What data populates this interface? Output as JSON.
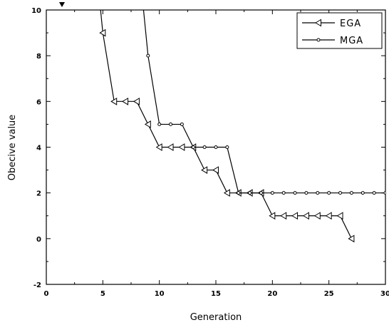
{
  "chart_data": {
    "type": "line",
    "title": "",
    "xlabel": "Generation",
    "ylabel": "Obecive value",
    "xlim": [
      0,
      30
    ],
    "ylim": [
      -2,
      10
    ],
    "x_ticks": [
      "0",
      "5",
      "10",
      "15",
      "20",
      "25",
      "30"
    ],
    "y_ticks": [
      "-2",
      "0",
      "2",
      "4",
      "6",
      "8",
      "10"
    ],
    "legend_position": "top-right",
    "grid": false,
    "series": [
      {
        "name": "EGA",
        "marker": "left-triangle",
        "color": "#000000",
        "x": [
          4.8,
          5,
          6,
          7,
          8,
          9,
          10,
          11,
          12,
          13,
          14,
          15,
          16,
          17,
          18,
          19,
          20,
          21,
          22,
          23,
          24,
          25,
          26,
          27
        ],
        "y": [
          10,
          9,
          6,
          6,
          6,
          5,
          4,
          4,
          4,
          4,
          3,
          3,
          2,
          2,
          2,
          2,
          1,
          1,
          1,
          1,
          1,
          1,
          1,
          0
        ]
      },
      {
        "name": "MGA",
        "marker": "circle",
        "color": "#000000",
        "x": [
          8.6,
          9,
          10,
          11,
          12,
          13,
          14,
          15,
          16,
          17,
          18,
          19,
          20,
          21,
          22,
          23,
          24,
          25,
          26,
          27,
          28,
          29,
          30
        ],
        "y": [
          10,
          8,
          5,
          5,
          5,
          4,
          4,
          4,
          4,
          2,
          2,
          2,
          2,
          2,
          2,
          2,
          2,
          2,
          2,
          2,
          2,
          2,
          2
        ]
      }
    ]
  }
}
